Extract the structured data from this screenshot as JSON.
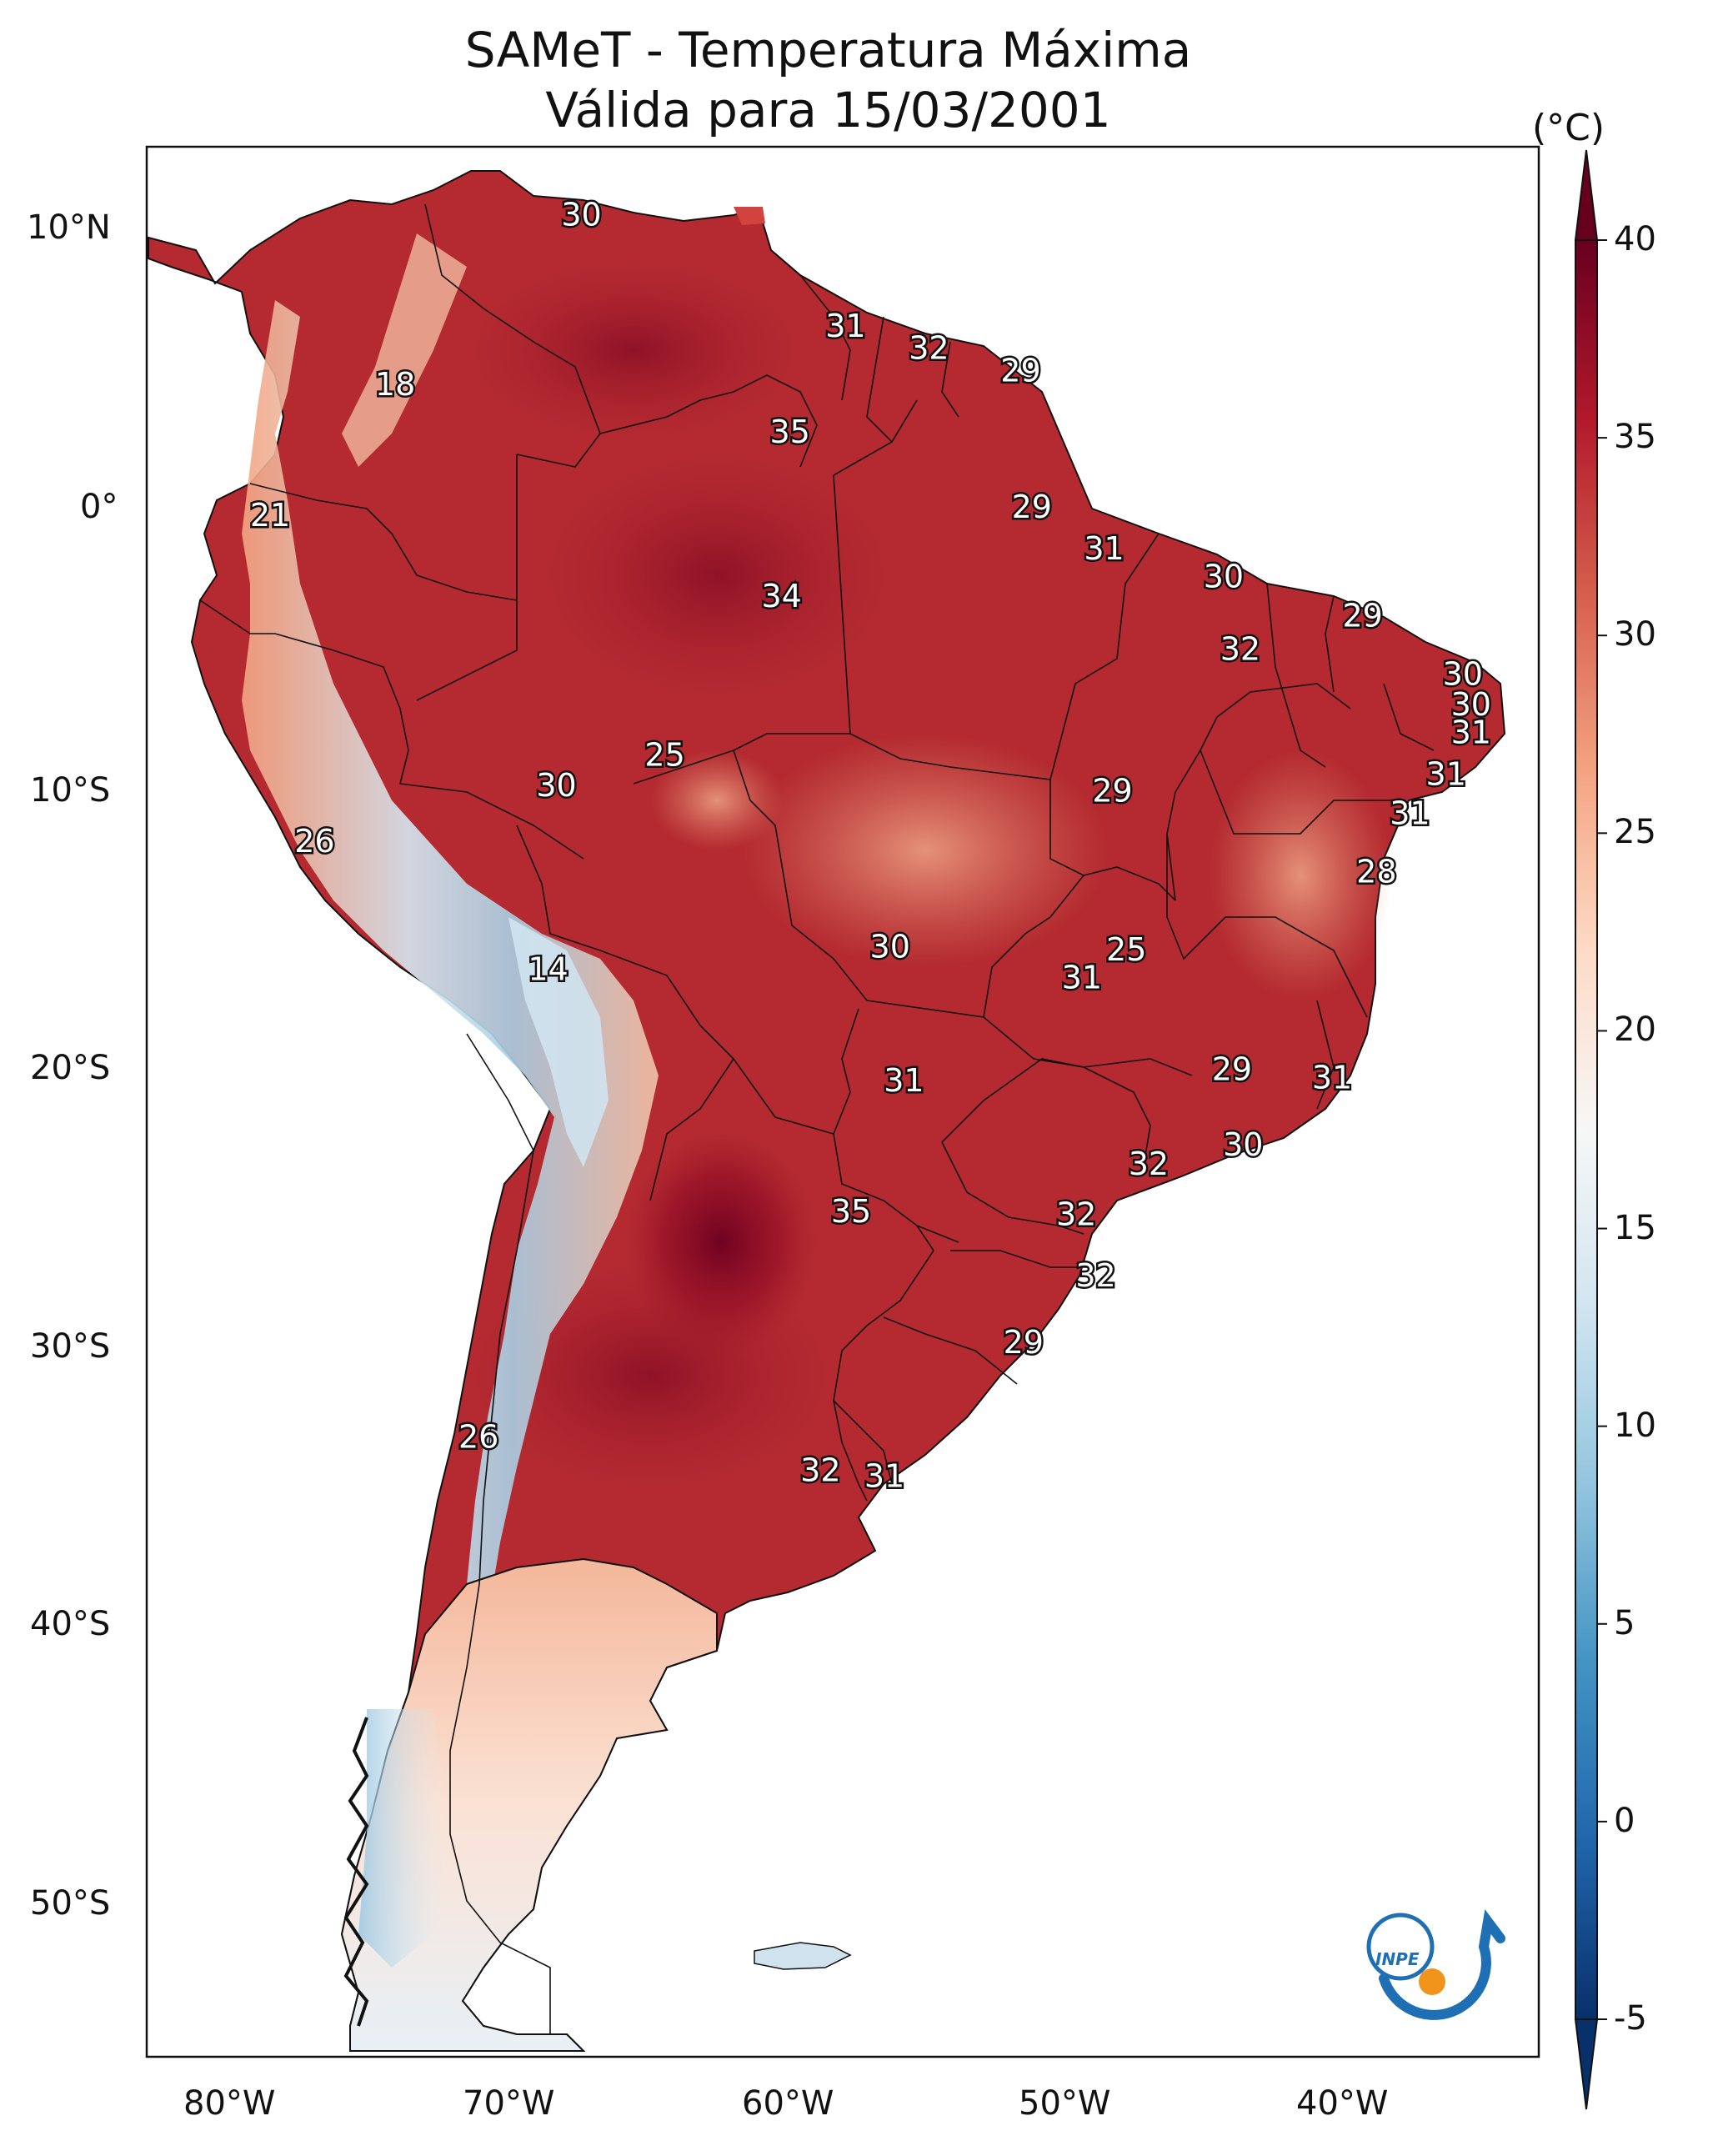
{
  "title": {
    "line1": "SAMeT - Temperatura Máxima",
    "line2": "Válida para 15/03/2001"
  },
  "axes": {
    "lat_labels": [
      "10°N",
      "0°",
      "10°S",
      "20°S",
      "30°S",
      "40°S",
      "50°S"
    ],
    "lon_labels": [
      "80°W",
      "70°W",
      "60°W",
      "50°W",
      "40°W"
    ]
  },
  "colorbar": {
    "unit_label": "(°C)",
    "ticks": [
      "40",
      "35",
      "30",
      "25",
      "20",
      "15",
      "10",
      "5",
      "0",
      "-5"
    ],
    "min": -5,
    "max": 40,
    "colors": [
      "#08306b",
      "#2166ac",
      "#4393c3",
      "#92c5de",
      "#d1e5f0",
      "#f7f7f7",
      "#fddbc7",
      "#f4a582",
      "#d6604d",
      "#b2182b",
      "#67001f"
    ]
  },
  "station_labels": [
    {
      "value": "30",
      "lon": -67,
      "lat": 10.5
    },
    {
      "value": "31",
      "lon": -57.5,
      "lat": 6.5
    },
    {
      "value": "32",
      "lon": -54.5,
      "lat": 5.7
    },
    {
      "value": "29",
      "lon": -51.2,
      "lat": 4.9
    },
    {
      "value": "18",
      "lon": -73.7,
      "lat": 4.4
    },
    {
      "value": "35",
      "lon": -59.5,
      "lat": 2.7
    },
    {
      "value": "29",
      "lon": -50.8,
      "lat": 0
    },
    {
      "value": "21",
      "lon": -78.2,
      "lat": -0.3
    },
    {
      "value": "31",
      "lon": -48.2,
      "lat": -1.5
    },
    {
      "value": "30",
      "lon": -43.9,
      "lat": -2.5
    },
    {
      "value": "34",
      "lon": -59.8,
      "lat": -3.2
    },
    {
      "value": "29",
      "lon": -38.9,
      "lat": -3.9
    },
    {
      "value": "32",
      "lon": -43.3,
      "lat": -5.1
    },
    {
      "value": "30",
      "lon": -35.3,
      "lat": -6
    },
    {
      "value": "30",
      "lon": -35,
      "lat": -7.1
    },
    {
      "value": "31",
      "lon": -35,
      "lat": -8.1
    },
    {
      "value": "25",
      "lon": -64,
      "lat": -8.9
    },
    {
      "value": "31",
      "lon": -35.9,
      "lat": -9.6
    },
    {
      "value": "30",
      "lon": -67.9,
      "lat": -10
    },
    {
      "value": "29",
      "lon": -47.9,
      "lat": -10.2
    },
    {
      "value": "31",
      "lon": -37.2,
      "lat": -11
    },
    {
      "value": "26",
      "lon": -76.6,
      "lat": -12
    },
    {
      "value": "28",
      "lon": -38.4,
      "lat": -13.1
    },
    {
      "value": "30",
      "lon": -55.9,
      "lat": -15.8
    },
    {
      "value": "25",
      "lon": -47.4,
      "lat": -15.9
    },
    {
      "value": "14",
      "lon": -68.2,
      "lat": -16.6
    },
    {
      "value": "31",
      "lon": -49,
      "lat": -16.9
    },
    {
      "value": "29",
      "lon": -43.6,
      "lat": -20.2
    },
    {
      "value": "31",
      "lon": -55.4,
      "lat": -20.6
    },
    {
      "value": "31",
      "lon": -40,
      "lat": -20.5
    },
    {
      "value": "30",
      "lon": -43.2,
      "lat": -22.9
    },
    {
      "value": "32",
      "lon": -46.6,
      "lat": -23.6
    },
    {
      "value": "35",
      "lon": -57.3,
      "lat": -25.3
    },
    {
      "value": "32",
      "lon": -49.2,
      "lat": -25.4
    },
    {
      "value": "32",
      "lon": -48.5,
      "lat": -27.6
    },
    {
      "value": "29",
      "lon": -51.1,
      "lat": -30
    },
    {
      "value": "26",
      "lon": -70.7,
      "lat": -33.4
    },
    {
      "value": "32",
      "lon": -58.4,
      "lat": -34.6
    },
    {
      "value": "31",
      "lon": -56.1,
      "lat": -34.8
    }
  ],
  "logo": {
    "text": "INPE"
  }
}
